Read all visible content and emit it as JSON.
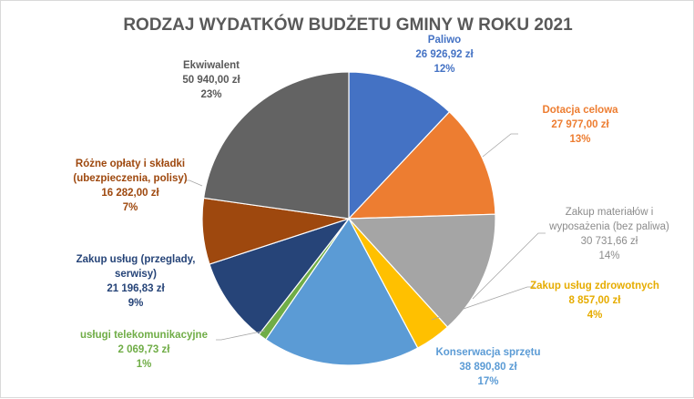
{
  "chart_data": {
    "type": "pie",
    "title": "RODZAJ WYDATKÓW BUDŻETU GMINY W ROKU 2021",
    "slices": [
      {
        "label_lines": [
          "Paliwo"
        ],
        "value": 26926.92,
        "value_text": "26 926,92 zł",
        "percent_text": "12%",
        "color": "#4472C4",
        "label_color": "#4472C4"
      },
      {
        "label_lines": [
          "Dotacja celowa"
        ],
        "value": 27977.0,
        "value_text": "27 977,00 zł",
        "percent_text": "13%",
        "color": "#ED7D31",
        "label_color": "#ED7D31"
      },
      {
        "label_lines": [
          "Zakup materiałów i",
          "wyposażenia (bez paliwa)"
        ],
        "value": 30731.66,
        "value_text": "30 731,66 zł",
        "percent_text": "14%",
        "color": "#A5A5A5",
        "label_color": "#8C8C8C"
      },
      {
        "label_lines": [
          "Zakup usług zdrowotnych"
        ],
        "value": 8857.0,
        "value_text": "8 857,00 zł",
        "percent_text": "4%",
        "color": "#FFC000",
        "label_color": "#E6AC00"
      },
      {
        "label_lines": [
          "Konserwacja sprzętu"
        ],
        "value": 38890.8,
        "value_text": "38 890,80 zł",
        "percent_text": "17%",
        "color": "#5B9BD5",
        "label_color": "#5B9BD5"
      },
      {
        "label_lines": [
          "usługi telekomunikacyjne"
        ],
        "value": 2069.73,
        "value_text": "2 069,73 zł",
        "percent_text": "1%",
        "color": "#70AD47",
        "label_color": "#70AD47"
      },
      {
        "label_lines": [
          "Zakup usług (przeglady,",
          "serwisy)"
        ],
        "value": 21196.83,
        "value_text": "21 196,83 zł",
        "percent_text": "9%",
        "color": "#264478",
        "label_color": "#264478"
      },
      {
        "label_lines": [
          "Różne opłaty i składki",
          "(ubezpieczenia,  polisy)"
        ],
        "value": 16282.0,
        "value_text": "16 282,00 zł",
        "percent_text": "7%",
        "color": "#9E480E",
        "label_color": "#9E480E"
      },
      {
        "label_lines": [
          "Ekwiwalent"
        ],
        "value": 50940.0,
        "value_text": "50 940,00 zł",
        "percent_text": "23%",
        "color": "#636363",
        "label_color": "#595959"
      }
    ]
  }
}
